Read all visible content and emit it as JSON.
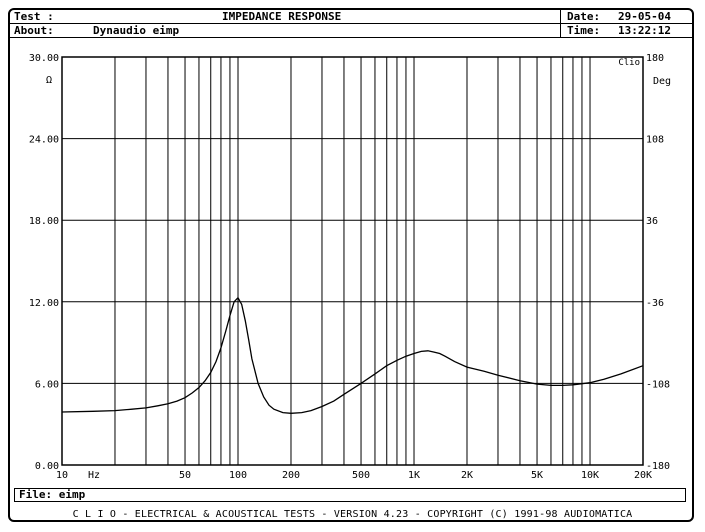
{
  "header": {
    "test_label": "Test :",
    "about_label": "About:",
    "title": "IMPEDANCE RESPONSE",
    "about_value": "Dynaudio eimp",
    "date_label": "Date:",
    "date_value": "29-05-04",
    "time_label": "Time:",
    "time_value": "13:22:12"
  },
  "file": {
    "label": "File:",
    "value": "eimp"
  },
  "footer": {
    "text": "C L I O  -  ELECTRICAL & ACOUSTICAL TESTS  -  VERSION 4.23  -  COPYRIGHT (C) 1991-98 AUDIOMATICA"
  },
  "chart_data": {
    "type": "line",
    "title": "IMPEDANCE RESPONSE",
    "watermark": "Clio",
    "x_scale": "log",
    "xlim": [
      10,
      20000
    ],
    "x_unit": "Hz",
    "x_ticks": [
      {
        "v": 10,
        "label": "10"
      },
      {
        "v": 50,
        "label": "50"
      },
      {
        "v": 100,
        "label": "100"
      },
      {
        "v": 200,
        "label": "200"
      },
      {
        "v": 500,
        "label": "500"
      },
      {
        "v": 1000,
        "label": "1K"
      },
      {
        "v": 2000,
        "label": "2K"
      },
      {
        "v": 5000,
        "label": "5K"
      },
      {
        "v": 10000,
        "label": "10K"
      },
      {
        "v": 20000,
        "label": "20K"
      }
    ],
    "ylim_left": [
      0,
      30
    ],
    "y_left_unit": "Ω",
    "y_left_ticks": [
      "0.00",
      "6.00",
      "12.00",
      "18.00",
      "24.00",
      "30.00"
    ],
    "ylim_right": [
      -180,
      180
    ],
    "y_right_unit": "Deg",
    "y_right_ticks": [
      "-180",
      "-108",
      "-36",
      "36",
      "108",
      "180"
    ],
    "grid": true,
    "series": [
      {
        "x": [
          10,
          15,
          20,
          25,
          30,
          35,
          40,
          45,
          50,
          55,
          60,
          65,
          70,
          75,
          80,
          85,
          90,
          95,
          100,
          105,
          110,
          115,
          120,
          130,
          140,
          150,
          160,
          180,
          200,
          230,
          260,
          300,
          350,
          400,
          500,
          600,
          700,
          800,
          900,
          1000,
          1100,
          1200,
          1300,
          1400,
          1500,
          1700,
          2000,
          2500,
          3000,
          4000,
          5000,
          6000,
          7000,
          8000,
          10000,
          12000,
          15000,
          20000
        ],
        "y": [
          3.9,
          3.95,
          4.0,
          4.1,
          4.2,
          4.35,
          4.5,
          4.7,
          4.95,
          5.3,
          5.7,
          6.2,
          6.8,
          7.6,
          8.6,
          9.8,
          11.0,
          12.0,
          12.3,
          11.8,
          10.6,
          9.2,
          7.8,
          6.0,
          5.0,
          4.4,
          4.1,
          3.85,
          3.8,
          3.85,
          4.0,
          4.3,
          4.7,
          5.2,
          6.0,
          6.7,
          7.3,
          7.7,
          8.0,
          8.2,
          8.35,
          8.4,
          8.3,
          8.2,
          8.0,
          7.6,
          7.2,
          6.9,
          6.6,
          6.2,
          5.95,
          5.85,
          5.85,
          5.9,
          6.05,
          6.3,
          6.7,
          7.3
        ]
      }
    ]
  }
}
